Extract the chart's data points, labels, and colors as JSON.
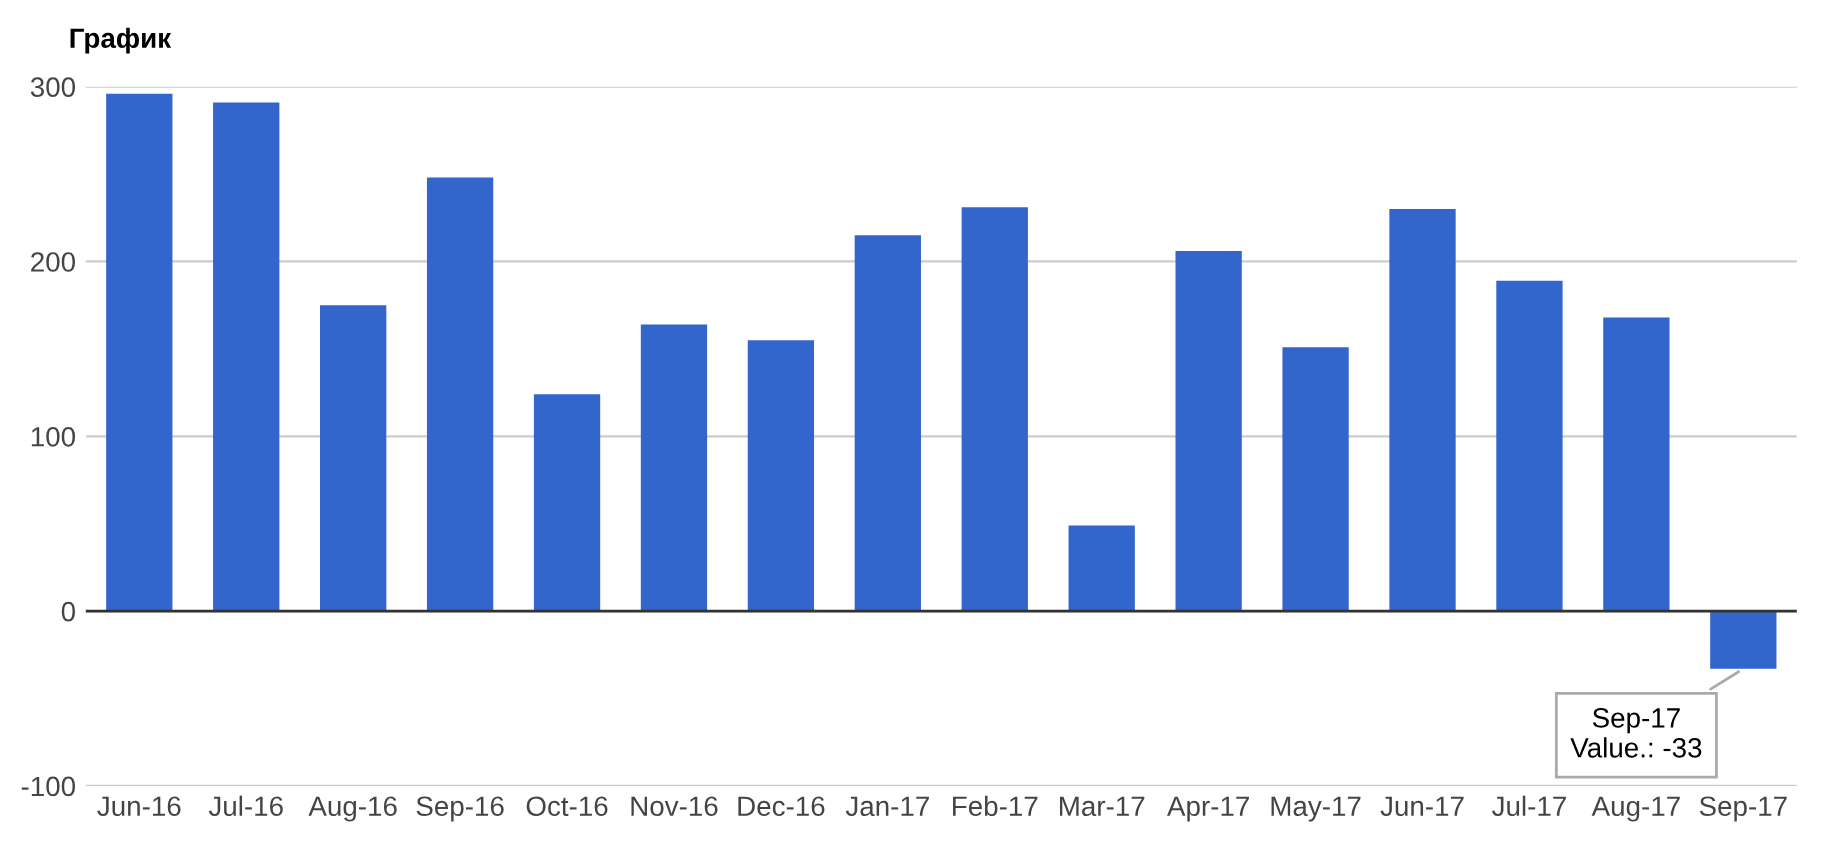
{
  "chart_data": {
    "type": "bar",
    "title": "График",
    "categories": [
      "Jun-16",
      "Jul-16",
      "Aug-16",
      "Sep-16",
      "Oct-16",
      "Nov-16",
      "Dec-16",
      "Jan-17",
      "Feb-17",
      "Mar-17",
      "Apr-17",
      "May-17",
      "Jun-17",
      "Jul-17",
      "Aug-17",
      "Sep-17"
    ],
    "values": [
      296,
      291,
      175,
      248,
      124,
      164,
      155,
      215,
      231,
      49,
      206,
      151,
      230,
      189,
      168,
      -33
    ],
    "color": "#3366cc",
    "ylim": [
      -100,
      300
    ],
    "yticks": [
      -100,
      0,
      100,
      200,
      300
    ],
    "grid": "y",
    "annotations": [
      {
        "text": "Sep-17\nValue.: -33",
        "x": "Sep-17",
        "y": -33
      }
    ]
  }
}
